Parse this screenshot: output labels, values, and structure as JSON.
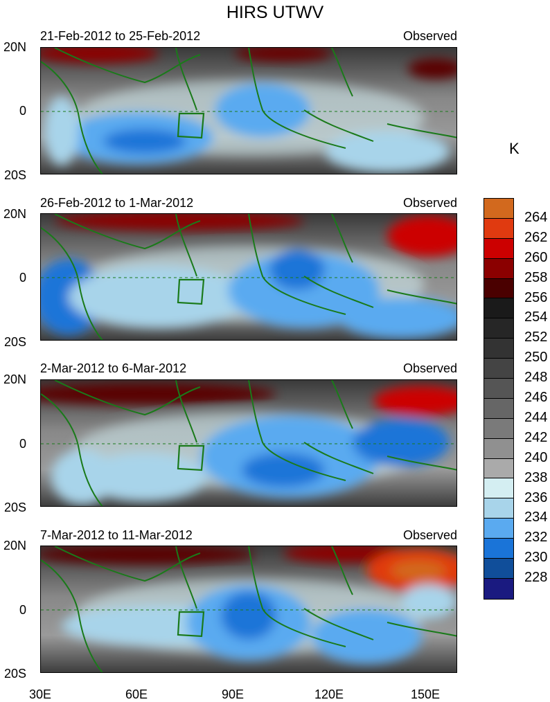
{
  "title": "HIRS UTWV",
  "unit": "K",
  "panels": [
    {
      "left_title": "21-Feb-2012 to 25-Feb-2012",
      "right_title": "Observed"
    },
    {
      "left_title": "26-Feb-2012 to 1-Mar-2012",
      "right_title": "Observed"
    },
    {
      "left_title": "2-Mar-2012 to 6-Mar-2012",
      "right_title": "Observed"
    },
    {
      "left_title": "7-Mar-2012 to 11-Mar-2012",
      "right_title": "Observed"
    }
  ],
  "lat_labels": [
    "20N",
    "0",
    "20S"
  ],
  "lon_labels": [
    "30E",
    "60E",
    "90E",
    "120E",
    "150E"
  ],
  "colorbar": {
    "labels": [
      "264",
      "262",
      "260",
      "258",
      "256",
      "254",
      "252",
      "250",
      "248",
      "246",
      "244",
      "242",
      "240",
      "238",
      "236",
      "234",
      "232",
      "230",
      "228"
    ],
    "colors": [
      "#d2691e",
      "#e03a10",
      "#cc0000",
      "#8b0000",
      "#4a0000",
      "#1a1a1a",
      "#262626",
      "#333333",
      "#444444",
      "#555555",
      "#666666",
      "#7a7a7a",
      "#909090",
      "#aaaaaa",
      "#d4eef2",
      "#a8d4ea",
      "#5aaaf0",
      "#1a74d8",
      "#104e9a",
      "#1a1a80"
    ]
  },
  "map": {
    "lon_range": [
      30,
      160
    ],
    "lat_range": [
      -20,
      20
    ],
    "box_region": "73E-80E, 0-8S"
  }
}
